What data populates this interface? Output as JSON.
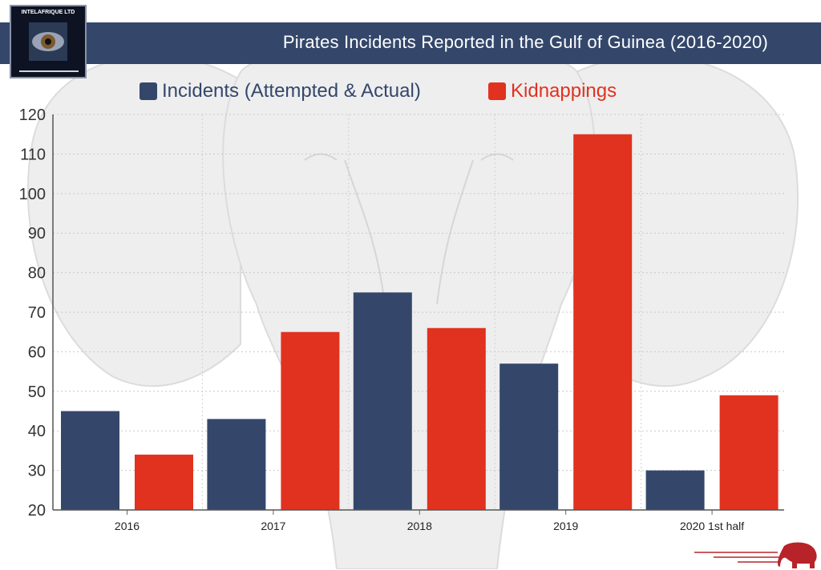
{
  "header": {
    "title": "Pirates Incidents Reported in the Gulf of Guinea (2016-2020)",
    "logo_text": "INTELAFRIQUE LTD"
  },
  "colors": {
    "incidents": "#34476b",
    "kidnappings": "#e0321f",
    "title_bar": "#34476b"
  },
  "chart_data": {
    "type": "bar",
    "title": "Pirates Incidents Reported in the Gulf of Guinea (2016-2020)",
    "categories": [
      "2016",
      "2017",
      "2018",
      "2019",
      "2020 1st half"
    ],
    "series": [
      {
        "name": "Incidents (Attempted & Actual)",
        "values": [
          45,
          43,
          75,
          57,
          30
        ]
      },
      {
        "name": "Kidnappings",
        "values": [
          34,
          65,
          66,
          115,
          49
        ]
      }
    ],
    "y_ticks": [
      "20",
      "30",
      "40",
      "50",
      "60",
      "70",
      "80",
      "90",
      "100",
      "110",
      "120"
    ],
    "ylim": [
      20,
      120
    ],
    "xlabel": "",
    "ylabel": "",
    "grid": true,
    "legend_position": "top"
  }
}
